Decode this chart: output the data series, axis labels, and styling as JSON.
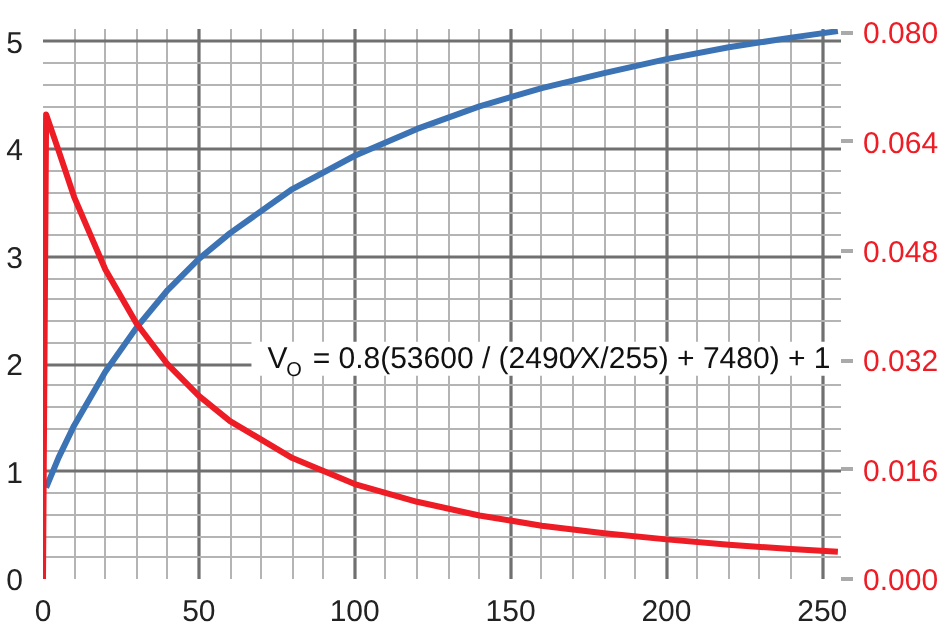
{
  "chart_data": {
    "type": "line",
    "grid": true,
    "annotations": [
      "V$_{O}$ = 0.8(53600 / (2490⁄X/255) + 7480) + 1"
    ],
    "xlim": [
      0,
      256
    ],
    "xticks": [
      0,
      50,
      100,
      150,
      200,
      250
    ],
    "ylim": [
      0,
      5.12
    ],
    "yticks": [
      0,
      1,
      2,
      3,
      4,
      5
    ],
    "y2lim": [
      0,
      0.0805
    ],
    "y2ticks": [
      {
        "value": 0,
        "label": "0.000"
      },
      {
        "value": 0.016,
        "label": "0.016"
      },
      {
        "value": 0.032,
        "label": "0.032"
      },
      {
        "value": 0.048,
        "label": "0.048"
      },
      {
        "value": 0.064,
        "label": "0.064"
      },
      {
        "value": 0.08,
        "label": "0.080"
      }
    ],
    "series": [
      {
        "color": "#3b73b5",
        "x": [
          1,
          5,
          10,
          20,
          30,
          40,
          50,
          60,
          80,
          100,
          120,
          140,
          160,
          180,
          200,
          220,
          240,
          255
        ],
        "values": [
          0.85,
          1.13,
          1.43,
          1.93,
          2.34,
          2.69,
          2.98,
          3.22,
          3.63,
          3.94,
          4.19,
          4.4,
          4.57,
          4.71,
          4.84,
          4.95,
          5.04,
          5.1
        ]
      },
      {
        "color": "#ee1c25",
        "axis": "y2",
        "x": [
          0,
          1,
          5,
          10,
          20,
          30,
          40,
          50,
          60,
          80,
          100,
          120,
          140,
          160,
          180,
          200,
          220,
          240,
          255
        ],
        "values": [
          0,
          0.068,
          0.0627,
          0.0559,
          0.0453,
          0.0374,
          0.0314,
          0.0268,
          0.0231,
          0.0177,
          0.0139,
          0.0113,
          0.0093,
          0.0078,
          0.0067,
          0.0058,
          0.005,
          0.0044,
          0.004
        ]
      }
    ]
  }
}
